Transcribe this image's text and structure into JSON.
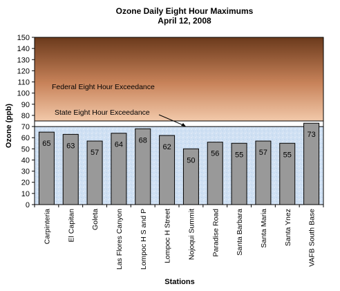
{
  "chart_data": {
    "type": "bar",
    "title": "Ozone Daily  Eight Hour Maximums",
    "subtitle": "April 12, 2008",
    "xlabel": "Stations",
    "ylabel": "Ozone (ppb)",
    "ylim": [
      0,
      150
    ],
    "ytick_step": 10,
    "categories": [
      "Carpinteria",
      "El Capitan",
      "Goleta",
      "Las Flores Canyon",
      "Lompoc H S and P",
      "Lompoc H Street",
      "Nojoqui Summit",
      "Paradise Road",
      "Santa Barbara",
      "Santa Maria",
      "Santa Ynez",
      "VAFB South Base"
    ],
    "values": [
      65,
      63,
      57,
      64,
      68,
      62,
      50,
      56,
      55,
      57,
      55,
      73
    ],
    "data_labels": [
      "65",
      "63",
      "57",
      "64",
      "68",
      "62",
      "50",
      "56",
      "55",
      "57",
      "55",
      "73"
    ],
    "annotations": {
      "federal": {
        "text": "Federal Eight Hour Exceedance",
        "threshold": 75
      },
      "state": {
        "text": "State Eight Hour Exceedance",
        "threshold": 70
      }
    },
    "colors": {
      "bar": "#999999",
      "bar_stroke": "#000000",
      "exceedance_top": "#6b3a1c",
      "exceedance_bottom": "#f2c9aa",
      "safe_zone": "#cfe0f3"
    },
    "grid": false,
    "legend": "none"
  }
}
